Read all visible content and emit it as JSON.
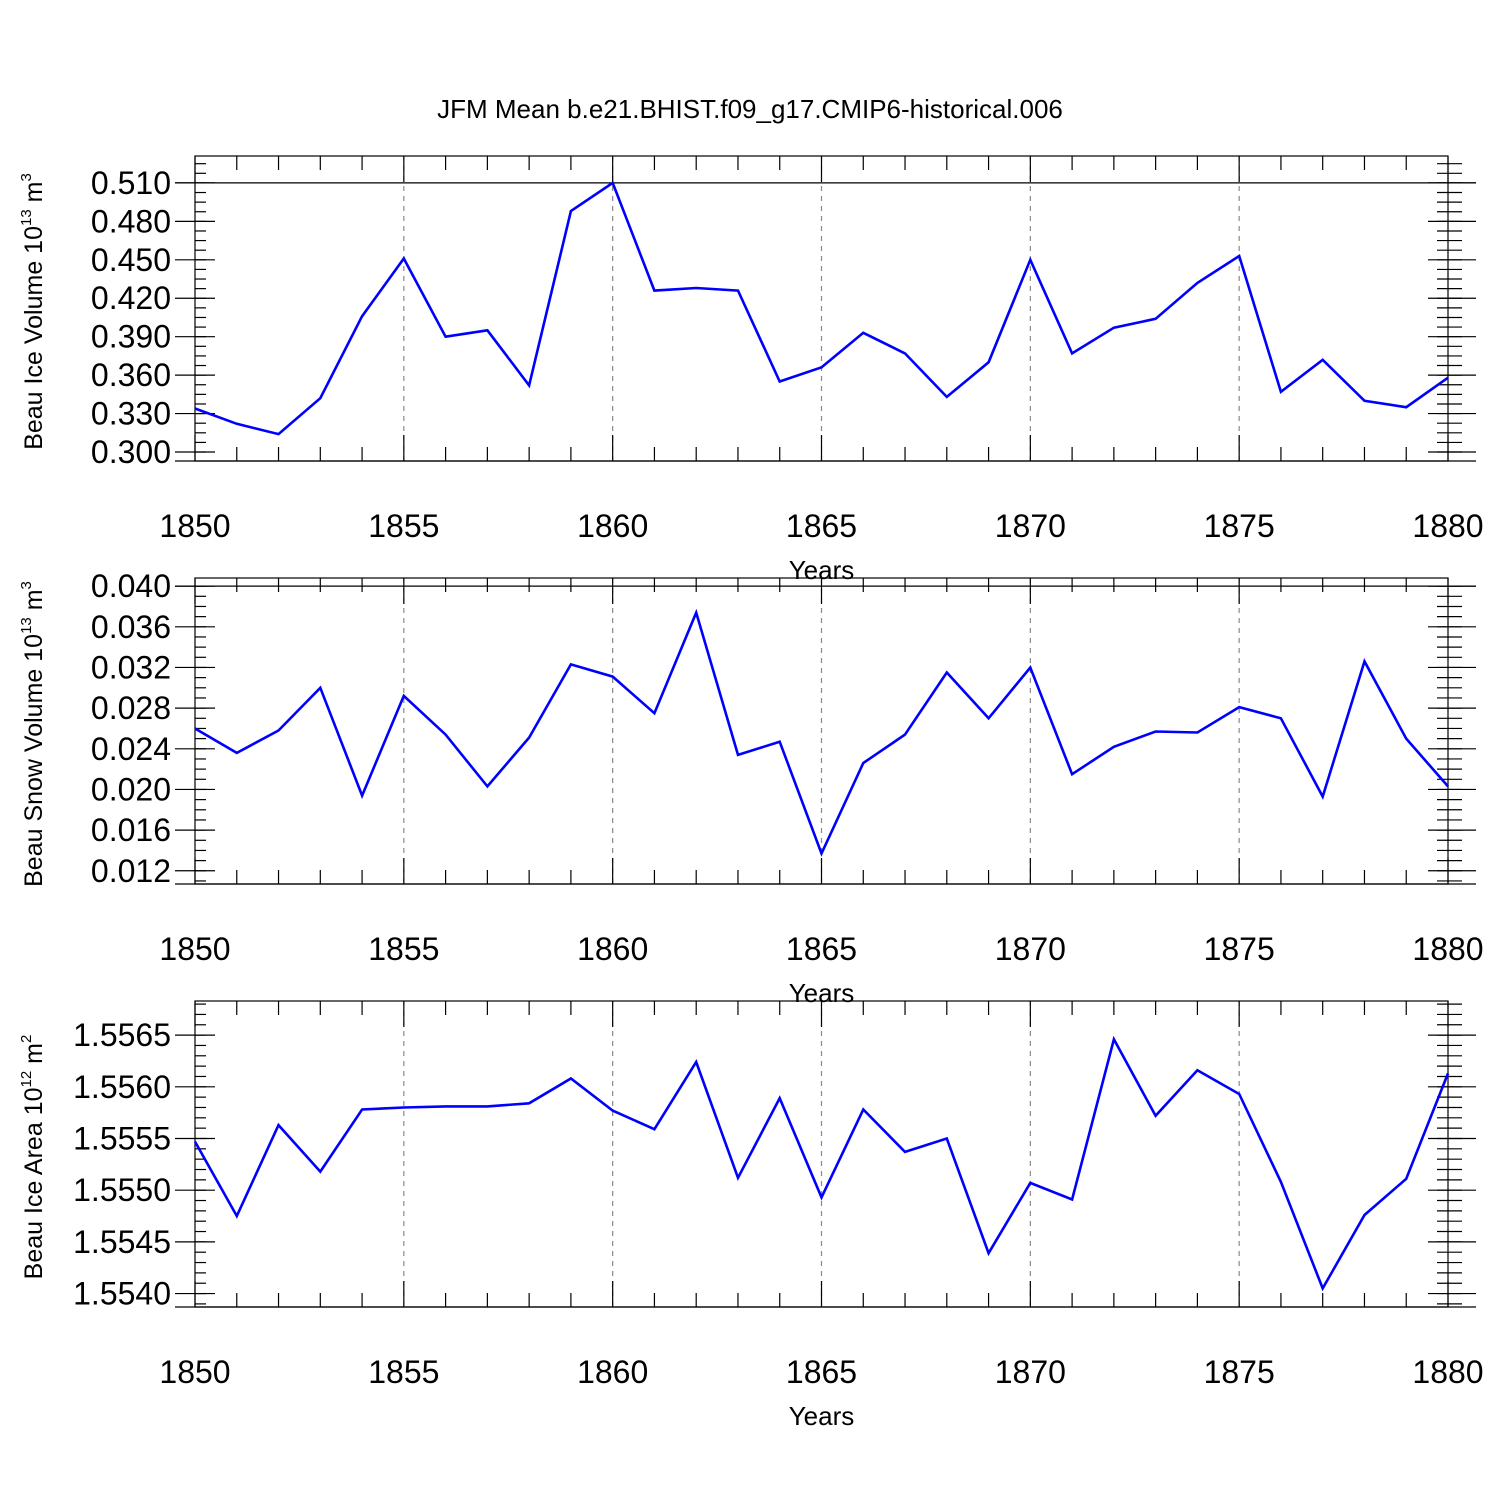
{
  "figure": {
    "title": "JFM Mean b.e21.BHIST.f09_g17.CMIP6-historical.006"
  },
  "chart_data": [
    {
      "type": "line",
      "ylabel": {
        "main": "Beau Ice Volume 10",
        "exp": "13",
        "unit": " m",
        "unit_exp": "3"
      },
      "xlabel": "Years",
      "xlim": [
        1850,
        1880
      ],
      "ylim": [
        0.293,
        0.531
      ],
      "xticks": [
        "1850",
        "1855",
        "1860",
        "1865",
        "1870",
        "1875",
        "1880"
      ],
      "yticks": [
        "0.300",
        "0.330",
        "0.360",
        "0.390",
        "0.420",
        "0.450",
        "0.480",
        "0.510"
      ],
      "ytick_step": 0.03,
      "ytick_start": 0.3,
      "minor_step": 0.0075,
      "grid": "vertical dashed at major x ticks",
      "series": [
        {
          "name": "Beau Ice Volume",
          "color": "#0000ff",
          "x": [
            1850,
            1851,
            1852,
            1853,
            1854,
            1855,
            1856,
            1857,
            1858,
            1859,
            1860,
            1861,
            1862,
            1863,
            1864,
            1865,
            1866,
            1867,
            1868,
            1869,
            1870,
            1871,
            1872,
            1873,
            1874,
            1875,
            1876,
            1877,
            1878,
            1879,
            1880
          ],
          "values": [
            0.334,
            0.322,
            0.314,
            0.342,
            0.406,
            0.451,
            0.39,
            0.395,
            0.352,
            0.488,
            0.51,
            0.426,
            0.428,
            0.426,
            0.355,
            0.366,
            0.393,
            0.377,
            0.343,
            0.37,
            0.45,
            0.377,
            0.397,
            0.404,
            0.432,
            0.453,
            0.347,
            0.372,
            0.34,
            0.335,
            0.358
          ]
        }
      ]
    },
    {
      "type": "line",
      "ylabel": {
        "main": "Beau Snow Volume 10",
        "exp": "13",
        "unit": " m",
        "unit_exp": "3"
      },
      "xlabel": "Years",
      "xlim": [
        1850,
        1880
      ],
      "ylim": [
        0.0107,
        0.0408
      ],
      "xticks": [
        "1850",
        "1855",
        "1860",
        "1865",
        "1870",
        "1875",
        "1880"
      ],
      "yticks": [
        "0.012",
        "0.016",
        "0.020",
        "0.024",
        "0.028",
        "0.032",
        "0.036",
        "0.040"
      ],
      "ytick_step": 0.004,
      "ytick_start": 0.012,
      "minor_step": 0.001,
      "grid": "vertical dashed at major x ticks",
      "series": [
        {
          "name": "Beau Snow Volume",
          "color": "#0000ff",
          "x": [
            1850,
            1851,
            1852,
            1853,
            1854,
            1855,
            1856,
            1857,
            1858,
            1859,
            1860,
            1861,
            1862,
            1863,
            1864,
            1865,
            1866,
            1867,
            1868,
            1869,
            1870,
            1871,
            1872,
            1873,
            1874,
            1875,
            1876,
            1877,
            1878,
            1879,
            1880
          ],
          "values": [
            0.026,
            0.0236,
            0.0258,
            0.03,
            0.0194,
            0.0292,
            0.0254,
            0.0203,
            0.0251,
            0.0323,
            0.0311,
            0.0275,
            0.0374,
            0.0234,
            0.0247,
            0.0137,
            0.0226,
            0.0254,
            0.0315,
            0.027,
            0.032,
            0.0215,
            0.0242,
            0.0257,
            0.0256,
            0.0281,
            0.027,
            0.0193,
            0.0326,
            0.025,
            0.0203
          ]
        }
      ]
    },
    {
      "type": "line",
      "ylabel": {
        "main": "Beau Ice Area 10",
        "exp": "12",
        "unit": " m",
        "unit_exp": "2"
      },
      "xlabel": "Years",
      "xlim": [
        1850,
        1880
      ],
      "ylim": [
        1.55387,
        1.55683
      ],
      "xticks": [
        "1850",
        "1855",
        "1860",
        "1865",
        "1870",
        "1875",
        "1880"
      ],
      "yticks": [
        "1.5540",
        "1.5545",
        "1.5550",
        "1.5555",
        "1.5560",
        "1.5565"
      ],
      "ytick_step": 0.0005,
      "ytick_start": 1.554,
      "minor_step": 0.0001,
      "grid": "vertical dashed at major x ticks",
      "series": [
        {
          "name": "Beau Ice Area",
          "color": "#0000ff",
          "x": [
            1850,
            1851,
            1852,
            1853,
            1854,
            1855,
            1856,
            1857,
            1858,
            1859,
            1860,
            1861,
            1862,
            1863,
            1864,
            1865,
            1866,
            1867,
            1868,
            1869,
            1870,
            1871,
            1872,
            1873,
            1874,
            1875,
            1876,
            1877,
            1878,
            1879,
            1880
          ],
          "values": [
            1.55547,
            1.55475,
            1.55563,
            1.55518,
            1.55578,
            1.5558,
            1.55581,
            1.55581,
            1.55584,
            1.55608,
            1.55577,
            1.55559,
            1.55624,
            1.55512,
            1.55589,
            1.55493,
            1.55578,
            1.55537,
            1.5555,
            1.55439,
            1.55507,
            1.55491,
            1.55646,
            1.55572,
            1.55616,
            1.55593,
            1.55508,
            1.55405,
            1.55476,
            1.55511,
            1.55613
          ]
        }
      ]
    }
  ]
}
